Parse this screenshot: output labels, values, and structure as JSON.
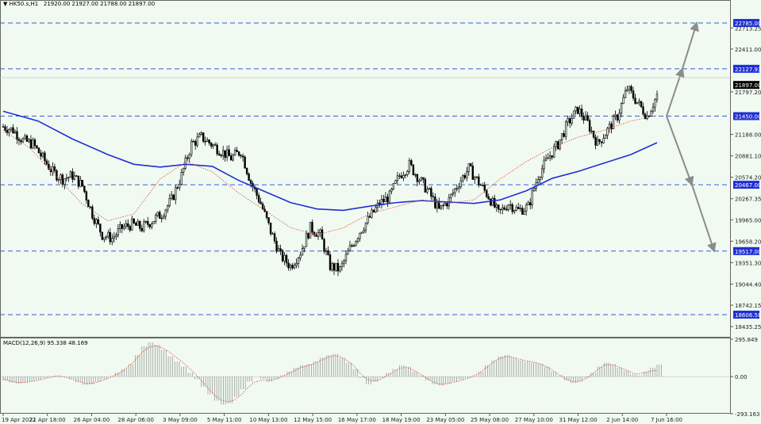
{
  "header": {
    "menu_icon": "triangle-down-icon",
    "symbol": "HK50.s,H1",
    "ohlc": "21920.00 21927.00 21788.00 21897.00"
  },
  "colors": {
    "background": "#f0faf0",
    "candle": "#000000",
    "ma_slow": "#1f2fd6",
    "ma_fast": "#e04a3a",
    "level_line": "#3a5ad8",
    "level_label_bg": "#1f2fd6",
    "current_price_bg": "#000000",
    "arrow": "#8c8c8c",
    "macd_hist": "#9a9a9a",
    "macd_signal": "#e04a3a"
  },
  "chart_data": [
    {
      "type": "candlestick",
      "timeframe": "H1",
      "symbol": "HK50.s",
      "x_ticks": [
        "19 Apr 2022",
        "21 Apr 18:00",
        "26 Apr 04:00",
        "28 Apr 06:00",
        "3 May 09:00",
        "5 May 11:00",
        "10 May 13:00",
        "12 May 15:00",
        "16 May 17:00",
        "18 May 19:00",
        "23 May 05:00",
        "25 May 08:00",
        "27 May 10:00",
        "31 May 12:00",
        "2 Jun 14:00",
        "7 Jun 16:00"
      ],
      "y_ticks": [
        22713.25,
        22411.0,
        21797.2,
        21188.0,
        20881.1,
        20574.2,
        20267.35,
        19965.0,
        19658.2,
        19351.3,
        19044.4,
        18742.15,
        18435.25
      ],
      "ylim": [
        18300,
        23000
      ],
      "current_price": 21897.0,
      "horizontal_levels": [
        22785.0,
        22127.93,
        21450.0,
        20467.0,
        19517.0,
        18606.58
      ],
      "series_close": [
        21300,
        21250,
        21100,
        21050,
        20850,
        20650,
        20550,
        20600,
        20450,
        20050,
        19750,
        19700,
        19850,
        19900,
        19850,
        19950,
        20050,
        20250,
        20600,
        21050,
        21150,
        21050,
        20950,
        20850,
        20950,
        20500,
        20200,
        19800,
        19450,
        19300,
        19500,
        19850,
        19750,
        19300,
        19250,
        19550,
        19800,
        20000,
        20200,
        20300,
        20600,
        20750,
        20550,
        20350,
        20100,
        20250,
        20500,
        20700,
        20500,
        20300,
        20050,
        20200,
        20100,
        20150,
        20600,
        20850,
        21050,
        21350,
        21550,
        21350,
        21050,
        21250,
        21450,
        21850,
        21650,
        21450,
        21750
      ],
      "ma_slow_points": [
        [
          0,
          21520
        ],
        [
          4,
          21380
        ],
        [
          8,
          21120
        ],
        [
          12,
          20900
        ],
        [
          15,
          20760
        ],
        [
          18,
          20720
        ],
        [
          21,
          20760
        ],
        [
          24,
          20730
        ],
        [
          27,
          20530
        ],
        [
          30,
          20370
        ],
        [
          33,
          20210
        ],
        [
          36,
          20120
        ],
        [
          39,
          20100
        ],
        [
          42,
          20160
        ],
        [
          45,
          20210
        ],
        [
          48,
          20240
        ],
        [
          51,
          20220
        ],
        [
          54,
          20200
        ],
        [
          57,
          20250
        ],
        [
          60,
          20380
        ],
        [
          63,
          20560
        ],
        [
          66,
          20660
        ],
        [
          69,
          20780
        ],
        [
          72,
          20900
        ],
        [
          75,
          21070
        ]
      ],
      "ma_fast_points": [
        [
          0,
          21250
        ],
        [
          4,
          21000
        ],
        [
          8,
          20600
        ],
        [
          12,
          20200
        ],
        [
          16,
          19950
        ],
        [
          20,
          20050
        ],
        [
          24,
          20550
        ],
        [
          28,
          20800
        ],
        [
          32,
          20650
        ],
        [
          36,
          20350
        ],
        [
          40,
          20100
        ],
        [
          44,
          19850
        ],
        [
          48,
          19750
        ],
        [
          52,
          19850
        ],
        [
          56,
          20050
        ],
        [
          60,
          20150
        ],
        [
          64,
          20250
        ],
        [
          68,
          20200
        ],
        [
          72,
          20250
        ],
        [
          76,
          20550
        ],
        [
          80,
          20800
        ],
        [
          84,
          21000
        ],
        [
          88,
          21150
        ],
        [
          92,
          21250
        ],
        [
          96,
          21380
        ],
        [
          100,
          21460
        ]
      ],
      "arrows": [
        {
          "from": 21450.0,
          "to": 22127.93
        },
        {
          "from": 22127.93,
          "to": 22785.0
        },
        {
          "from": 21450.0,
          "to": 20467.0
        },
        {
          "from": 20467.0,
          "to": 19517.0
        }
      ]
    },
    {
      "type": "bar",
      "label": "MACD(12,26,9) 95.338 48.169",
      "y_ticks": [
        295.849,
        0.0,
        -293.163
      ],
      "ylim": [
        -293.163,
        295.849
      ],
      "histogram": [
        -30,
        -45,
        -55,
        -50,
        -40,
        -25,
        -10,
        5,
        10,
        0,
        -20,
        -45,
        -65,
        -60,
        -40,
        -20,
        5,
        30,
        60,
        100,
        170,
        240,
        270,
        250,
        210,
        160,
        120,
        80,
        30,
        -20,
        -80,
        -140,
        -190,
        -220,
        -210,
        -160,
        -100,
        -40,
        0,
        -20,
        -40,
        -20,
        10,
        40,
        70,
        90,
        100,
        120,
        150,
        170,
        180,
        150,
        110,
        60,
        -10,
        -60,
        -40,
        -10,
        30,
        60,
        90,
        80,
        40,
        10,
        -30,
        -60,
        -70,
        -55,
        -40,
        -25,
        -10,
        10,
        40,
        90,
        130,
        160,
        170,
        150,
        130,
        120,
        110,
        100,
        80,
        40,
        10,
        -30,
        -50,
        -40,
        -10,
        30,
        80,
        110,
        100,
        70,
        50,
        20,
        10,
        40,
        70,
        95
      ],
      "signal": [
        -20,
        -35,
        -45,
        -45,
        -40,
        -32,
        -20,
        -8,
        2,
        0,
        -12,
        -30,
        -48,
        -55,
        -48,
        -32,
        -12,
        12,
        42,
        80,
        130,
        190,
        230,
        245,
        230,
        200,
        160,
        120,
        75,
        25,
        -30,
        -90,
        -145,
        -185,
        -200,
        -185,
        -145,
        -90,
        -45,
        -30,
        -30,
        -25,
        -5,
        20,
        45,
        70,
        85,
        100,
        125,
        150,
        165,
        160,
        130,
        90,
        30,
        -20,
        -35,
        -25,
        5,
        35,
        65,
        75,
        55,
        25,
        -10,
        -40,
        -60,
        -58,
        -48,
        -35,
        -20,
        0,
        25,
        65,
        105,
        140,
        158,
        155,
        140,
        128,
        118,
        105,
        88,
        55,
        22,
        -12,
        -38,
        -42,
        -22,
        12,
        55,
        90,
        95,
        80,
        60,
        35,
        20,
        30,
        45,
        48
      ]
    }
  ]
}
